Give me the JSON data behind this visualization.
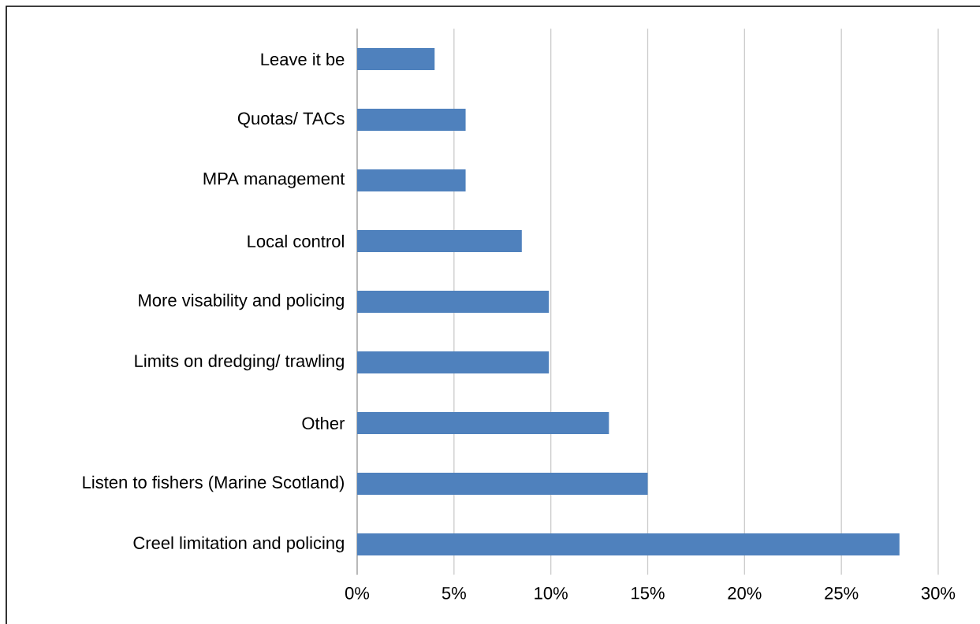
{
  "chart_data": {
    "type": "bar",
    "orientation": "horizontal",
    "categories": [
      "Leave it be",
      "Quotas/ TACs",
      "MPA management",
      "Local control",
      "More visability and policing",
      "Limits on dredging/ trawling",
      "Other",
      "Listen to fishers (Marine Scotland)",
      "Creel limitation and policing"
    ],
    "values": [
      4,
      5.6,
      5.6,
      8.5,
      9.9,
      9.9,
      13,
      15,
      28
    ],
    "color": "#4f81bd",
    "xlim": [
      0,
      30
    ],
    "xticks": [
      {
        "value": 0,
        "label": "0%"
      },
      {
        "value": 5,
        "label": "5%"
      },
      {
        "value": 10,
        "label": "10%"
      },
      {
        "value": 15,
        "label": "15%"
      },
      {
        "value": 20,
        "label": "20%"
      },
      {
        "value": 25,
        "label": "25%"
      },
      {
        "value": 30,
        "label": "30%"
      }
    ],
    "grid": "x"
  }
}
